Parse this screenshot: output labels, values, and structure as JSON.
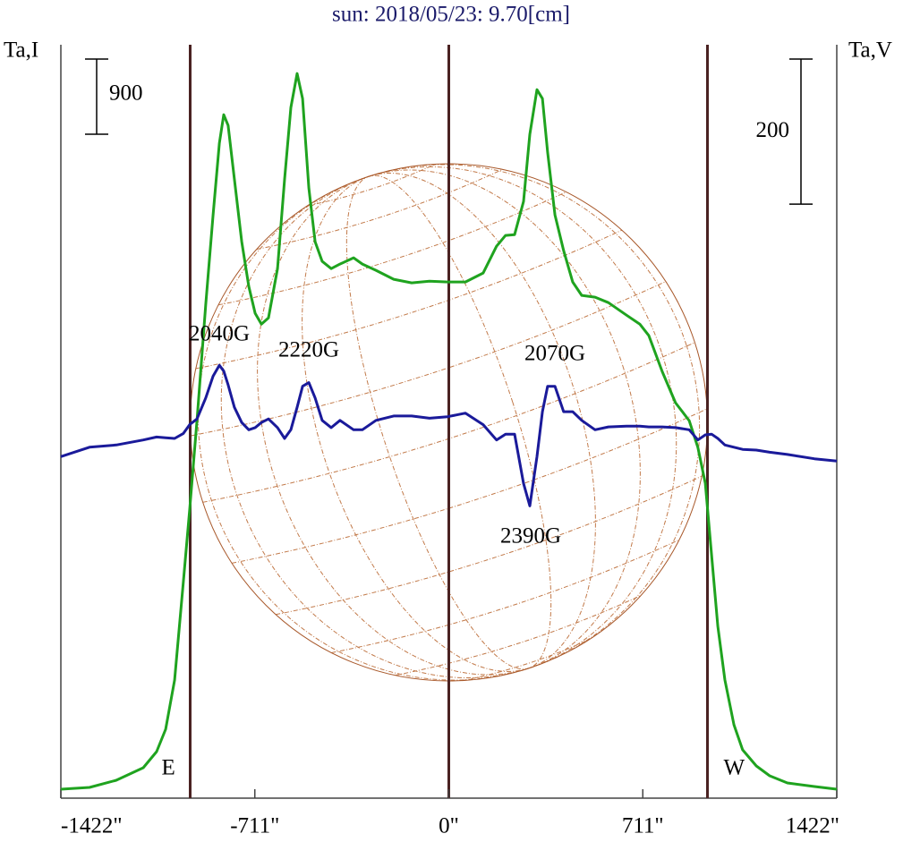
{
  "chart_data": {
    "type": "line",
    "title": "sun: 2018/05/23: 9.70[cm]",
    "x": [
      -1422,
      -1317,
      -1219,
      -1120,
      -1071,
      -1038,
      -1005,
      -973,
      -950,
      -923,
      -891,
      -864,
      -841,
      -825,
      -809,
      -786,
      -759,
      -733,
      -710,
      -687,
      -661,
      -628,
      -602,
      -579,
      -556,
      -536,
      -513,
      -490,
      -464,
      -431,
      -399,
      -349,
      -317,
      -267,
      -202,
      -136,
      -71,
      -5,
      61,
      126,
      175,
      208,
      241,
      274,
      297,
      323,
      343,
      362,
      389,
      421,
      454,
      487,
      536,
      585,
      651,
      700,
      733,
      782,
      831,
      881,
      913,
      940,
      963,
      986,
      1012,
      1045,
      1077,
      1127,
      1176,
      1241,
      1340,
      1422
    ],
    "series": [
      {
        "name": "Ta,I",
        "color": "#1fa31f",
        "axis": "y",
        "values": [
          107,
          129,
          214,
          364,
          557,
          825,
          1414,
          2592,
          3449,
          4520,
          5912,
          6983,
          7840,
          8182,
          8054,
          7411,
          6662,
          6126,
          5805,
          5676,
          5751,
          6340,
          7411,
          8268,
          8675,
          8375,
          7304,
          6662,
          6426,
          6340,
          6394,
          6469,
          6394,
          6319,
          6212,
          6169,
          6190,
          6180,
          6180,
          6287,
          6608,
          6737,
          6747,
          7144,
          7947,
          8482,
          8375,
          7733,
          6983,
          6555,
          6180,
          6019,
          5998,
          5933,
          5783,
          5676,
          5537,
          5109,
          4734,
          4520,
          4198,
          3770,
          2913,
          2056,
          1414,
          878,
          578,
          386,
          268,
          182,
          139,
          107
        ]
      },
      {
        "name": "Ta,V",
        "color": "#1a1a9a",
        "axis": "y2",
        "values": [
          -25,
          -12,
          -9,
          -2,
          2,
          1,
          0,
          7,
          19,
          27,
          56,
          86,
          101,
          93,
          74,
          43,
          22,
          12,
          15,
          22,
          27,
          15,
          0,
          12,
          43,
          72,
          77,
          56,
          25,
          15,
          25,
          12,
          12,
          25,
          31,
          31,
          28,
          30,
          35,
          19,
          -2,
          6,
          6,
          -62,
          -93,
          -25,
          37,
          72,
          72,
          37,
          37,
          25,
          12,
          16,
          17,
          17,
          16,
          16,
          15,
          12,
          -2,
          5,
          6,
          0,
          -9,
          -12,
          -15,
          -16,
          -19,
          -22,
          -28,
          -31
        ]
      }
    ],
    "xlim": [
      -1422,
      1422
    ],
    "xticks": [
      {
        "value": -1422,
        "label": "-1422\""
      },
      {
        "value": -711,
        "label": "-711\""
      },
      {
        "value": 0,
        "label": "0\""
      },
      {
        "value": 711,
        "label": "711\""
      },
      {
        "value": 1422,
        "label": "1422\""
      }
    ],
    "ylim": [
      0,
      9020
    ],
    "y2lim": [
      -496,
      543
    ],
    "scale_bars": [
      {
        "value": 900,
        "axis": "y"
      },
      {
        "value": 200,
        "axis": "y2"
      }
    ],
    "limb_lines": [
      {
        "value": -948,
        "label": "E"
      },
      {
        "value": 0
      },
      {
        "value": 948,
        "label": "W"
      }
    ],
    "annotations": [
      "2040G",
      "2220G",
      "2070G",
      "2390G"
    ]
  }
}
